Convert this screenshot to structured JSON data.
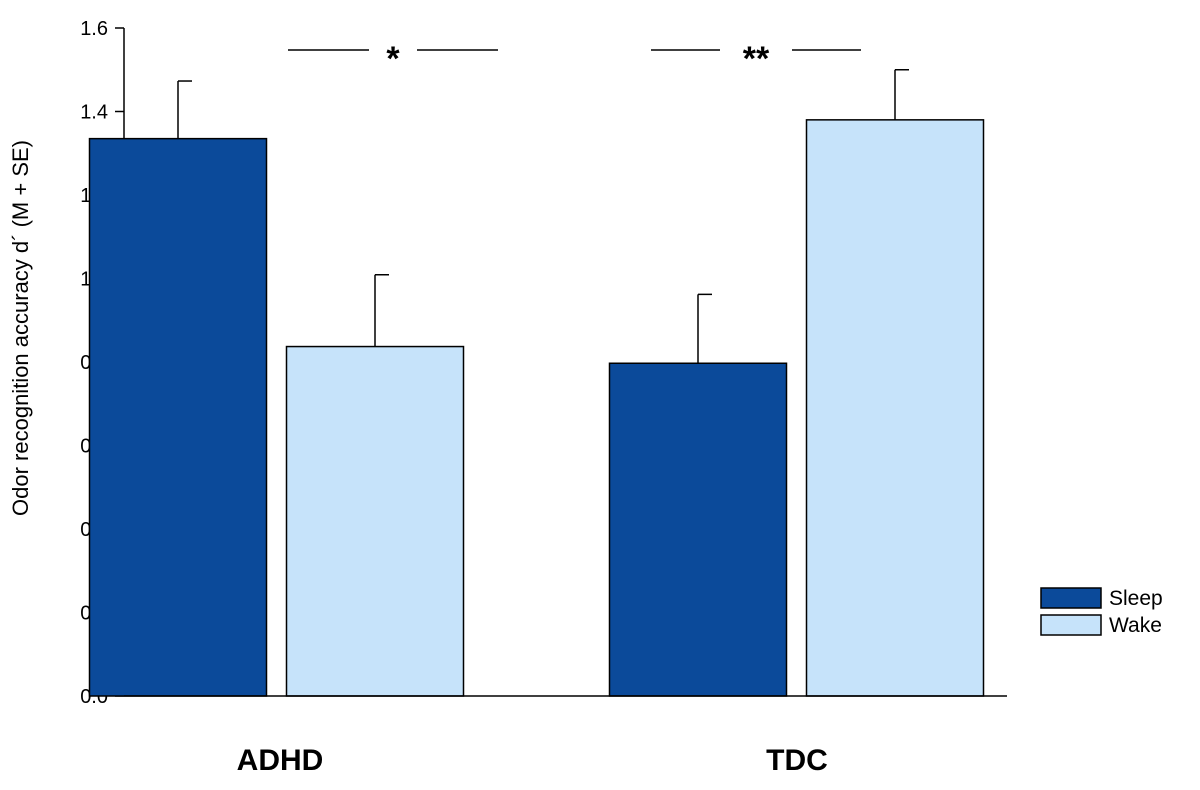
{
  "chart_data": {
    "type": "bar",
    "categories": [
      "ADHD",
      "TDC"
    ],
    "series": [
      {
        "name": "Sleep",
        "values": [
          1.335,
          0.797
        ],
        "errors": [
          0.138,
          0.165
        ],
        "color": "#0b4a9a"
      },
      {
        "name": "Wake",
        "values": [
          0.837,
          1.38
        ],
        "errors": [
          0.172,
          0.12
        ],
        "color": "#c6e3fa"
      }
    ],
    "title": "",
    "xlabel": "",
    "ylabel": "Odor recognition accuracy d´ (M + SE)",
    "ylim": [
      0.0,
      1.6
    ],
    "yticks": [
      "0.0",
      "0.2",
      "0.4",
      "0.6",
      "0.8",
      "1.0",
      "1.2",
      "1.4",
      "1.6"
    ],
    "significance": [
      {
        "category": "ADHD",
        "label": "*"
      },
      {
        "category": "TDC",
        "label": "**"
      }
    ],
    "legend_position": "bottom-right",
    "grid": false
  }
}
